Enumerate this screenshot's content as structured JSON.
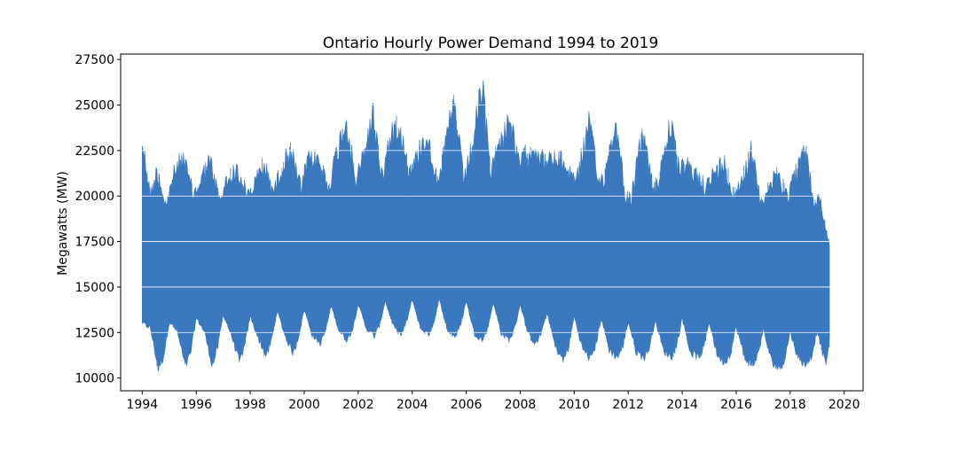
{
  "chart_data": {
    "type": "area",
    "title": "Ontario Hourly Power Demand 1994 to 2019",
    "xlabel": "",
    "ylabel": "Megawatts (MW)",
    "xlim": [
      1993.2,
      2020.7
    ],
    "ylim": [
      9300,
      27800
    ],
    "xticks": [
      1994,
      1996,
      1998,
      2000,
      2002,
      2004,
      2006,
      2008,
      2010,
      2012,
      2014,
      2016,
      2018,
      2020
    ],
    "xtick_labels": [
      "1994",
      "1996",
      "1998",
      "2000",
      "2002",
      "2004",
      "2006",
      "2008",
      "2010",
      "2012",
      "2014",
      "2016",
      "2018",
      "2020"
    ],
    "yticks": [
      10000,
      12500,
      15000,
      17500,
      20000,
      22500,
      25000,
      27500
    ],
    "ytick_labels": [
      "10000",
      "12500",
      "15000",
      "17500",
      "20000",
      "22500",
      "25000",
      "27500"
    ],
    "grid": "horizontal-white",
    "series": [
      {
        "color": "#3a78bf",
        "x_start": 1994.0,
        "x_end": 2019.45,
        "high_envelope": [
          [
            1994.0,
            23800
          ],
          [
            1994.3,
            20500
          ],
          [
            1994.55,
            22000
          ],
          [
            1994.9,
            19800
          ],
          [
            1995.1,
            21500
          ],
          [
            1995.5,
            22800
          ],
          [
            1995.9,
            20500
          ],
          [
            1996.1,
            21200
          ],
          [
            1996.5,
            22600
          ],
          [
            1996.9,
            20000
          ],
          [
            1997.1,
            21300
          ],
          [
            1997.5,
            22000
          ],
          [
            1997.9,
            20500
          ],
          [
            1998.1,
            21000
          ],
          [
            1998.5,
            22300
          ],
          [
            1998.9,
            20700
          ],
          [
            1999.1,
            22000
          ],
          [
            1999.5,
            23200
          ],
          [
            1999.9,
            20800
          ],
          [
            2000.1,
            22500
          ],
          [
            2000.5,
            22700
          ],
          [
            2000.9,
            21000
          ],
          [
            2001.1,
            22400
          ],
          [
            2001.55,
            25200
          ],
          [
            2001.9,
            21300
          ],
          [
            2002.1,
            22300
          ],
          [
            2002.55,
            25400
          ],
          [
            2002.9,
            21500
          ],
          [
            2003.1,
            23500
          ],
          [
            2003.5,
            25000
          ],
          [
            2003.9,
            21800
          ],
          [
            2004.1,
            22500
          ],
          [
            2004.5,
            24200
          ],
          [
            2004.9,
            21700
          ],
          [
            2005.1,
            22400
          ],
          [
            2005.55,
            26100
          ],
          [
            2005.9,
            21400
          ],
          [
            2006.1,
            22500
          ],
          [
            2006.6,
            27000
          ],
          [
            2006.9,
            22000
          ],
          [
            2007.1,
            22800
          ],
          [
            2007.6,
            25300
          ],
          [
            2007.9,
            22500
          ],
          [
            2008.1,
            22700
          ],
          [
            2008.55,
            23500
          ],
          [
            2008.9,
            22400
          ],
          [
            2009.1,
            22600
          ],
          [
            2009.55,
            22500
          ],
          [
            2009.9,
            21800
          ],
          [
            2010.1,
            21500
          ],
          [
            2010.55,
            24900
          ],
          [
            2010.9,
            21300
          ],
          [
            2011.1,
            21600
          ],
          [
            2011.55,
            24900
          ],
          [
            2011.9,
            20500
          ],
          [
            2012.1,
            20200
          ],
          [
            2012.55,
            24400
          ],
          [
            2012.9,
            21000
          ],
          [
            2013.1,
            21300
          ],
          [
            2013.55,
            24900
          ],
          [
            2013.9,
            21800
          ],
          [
            2014.1,
            22300
          ],
          [
            2014.55,
            21700
          ],
          [
            2014.9,
            21000
          ],
          [
            2015.1,
            21600
          ],
          [
            2015.55,
            22500
          ],
          [
            2015.9,
            20500
          ],
          [
            2016.1,
            21000
          ],
          [
            2016.55,
            23200
          ],
          [
            2016.9,
            20200
          ],
          [
            2017.1,
            20700
          ],
          [
            2017.55,
            21800
          ],
          [
            2017.9,
            20400
          ],
          [
            2018.1,
            21500
          ],
          [
            2018.55,
            23200
          ],
          [
            2018.9,
            20000
          ],
          [
            2019.1,
            20300
          ],
          [
            2019.45,
            17500
          ]
        ],
        "low_envelope": [
          [
            1994.0,
            12900
          ],
          [
            1994.3,
            12600
          ],
          [
            1994.6,
            10200
          ],
          [
            1994.8,
            11000
          ],
          [
            1995.0,
            13000
          ],
          [
            1995.3,
            12400
          ],
          [
            1995.6,
            10300
          ],
          [
            1995.8,
            11200
          ],
          [
            1996.0,
            13200
          ],
          [
            1996.3,
            12400
          ],
          [
            1996.6,
            10400
          ],
          [
            1996.8,
            11500
          ],
          [
            1997.0,
            13400
          ],
          [
            1997.3,
            12200
          ],
          [
            1997.6,
            10600
          ],
          [
            1997.8,
            11600
          ],
          [
            1998.0,
            13300
          ],
          [
            1998.3,
            12000
          ],
          [
            1998.6,
            10900
          ],
          [
            1998.8,
            12000
          ],
          [
            1999.0,
            13600
          ],
          [
            1999.3,
            12100
          ],
          [
            1999.6,
            11100
          ],
          [
            1999.8,
            12200
          ],
          [
            2000.0,
            13700
          ],
          [
            2000.3,
            12200
          ],
          [
            2000.6,
            11700
          ],
          [
            2000.8,
            12500
          ],
          [
            2001.0,
            13900
          ],
          [
            2001.3,
            12400
          ],
          [
            2001.6,
            11900
          ],
          [
            2001.8,
            12600
          ],
          [
            2002.0,
            14000
          ],
          [
            2002.3,
            12600
          ],
          [
            2002.6,
            12100
          ],
          [
            2002.8,
            12800
          ],
          [
            2003.0,
            14200
          ],
          [
            2003.3,
            12700
          ],
          [
            2003.6,
            12200
          ],
          [
            2003.8,
            13000
          ],
          [
            2004.0,
            14300
          ],
          [
            2004.3,
            12600
          ],
          [
            2004.6,
            12200
          ],
          [
            2004.8,
            12900
          ],
          [
            2005.0,
            14300
          ],
          [
            2005.3,
            12500
          ],
          [
            2005.6,
            12100
          ],
          [
            2005.8,
            12800
          ],
          [
            2006.0,
            14200
          ],
          [
            2006.3,
            12300
          ],
          [
            2006.6,
            11900
          ],
          [
            2006.8,
            12600
          ],
          [
            2007.0,
            14100
          ],
          [
            2007.3,
            12300
          ],
          [
            2007.6,
            11900
          ],
          [
            2007.8,
            12600
          ],
          [
            2008.0,
            14000
          ],
          [
            2008.3,
            12200
          ],
          [
            2008.6,
            11700
          ],
          [
            2008.8,
            12400
          ],
          [
            2009.0,
            13500
          ],
          [
            2009.3,
            11500
          ],
          [
            2009.6,
            10700
          ],
          [
            2009.8,
            11500
          ],
          [
            2010.0,
            13300
          ],
          [
            2010.3,
            11400
          ],
          [
            2010.6,
            10800
          ],
          [
            2010.8,
            11600
          ],
          [
            2011.0,
            13200
          ],
          [
            2011.3,
            11300
          ],
          [
            2011.6,
            10900
          ],
          [
            2011.8,
            11500
          ],
          [
            2012.0,
            13000
          ],
          [
            2012.3,
            11200
          ],
          [
            2012.6,
            10900
          ],
          [
            2012.8,
            11500
          ],
          [
            2013.0,
            13100
          ],
          [
            2013.3,
            11300
          ],
          [
            2013.6,
            10900
          ],
          [
            2013.8,
            11600
          ],
          [
            2014.0,
            13200
          ],
          [
            2014.3,
            11200
          ],
          [
            2014.6,
            10900
          ],
          [
            2014.8,
            11400
          ],
          [
            2015.0,
            13000
          ],
          [
            2015.3,
            11000
          ],
          [
            2015.6,
            10600
          ],
          [
            2015.8,
            11200
          ],
          [
            2016.0,
            12700
          ],
          [
            2016.3,
            10900
          ],
          [
            2016.6,
            10400
          ],
          [
            2016.8,
            11000
          ],
          [
            2017.0,
            12500
          ],
          [
            2017.3,
            10700
          ],
          [
            2017.6,
            10200
          ],
          [
            2017.8,
            10800
          ],
          [
            2018.0,
            12400
          ],
          [
            2018.3,
            10800
          ],
          [
            2018.6,
            10500
          ],
          [
            2018.8,
            11000
          ],
          [
            2019.0,
            12500
          ],
          [
            2019.3,
            10500
          ],
          [
            2019.45,
            11500
          ]
        ]
      }
    ]
  }
}
